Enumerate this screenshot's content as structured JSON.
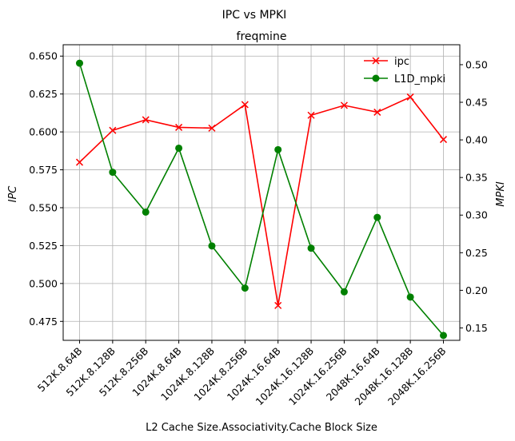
{
  "chart_data": {
    "type": "line",
    "suptitle": "IPC vs MPKI",
    "title": "freqmine",
    "xlabel": "L2 Cache Size.Associativity.Cache Block Size",
    "ylabel_left": "IPC",
    "ylabel_right": "MPKI",
    "categories": [
      "512K.8.64B",
      "512K.8.128B",
      "512K.8.256B",
      "1024K.8.64B",
      "1024K.8.128B",
      "1024K.8.256B",
      "1024K.16.64B",
      "1024K.16.128B",
      "1024K.16.256B",
      "2048K.16.64B",
      "2048K.16.128B",
      "2048K.16.256B"
    ],
    "series": [
      {
        "name": "ipc",
        "axis": "left",
        "color": "#ff0000",
        "marker": "x",
        "values": [
          0.58,
          0.601,
          0.608,
          0.603,
          0.6025,
          0.618,
          0.4855,
          0.611,
          0.6175,
          0.613,
          0.623,
          0.595
        ]
      },
      {
        "name": "L1D_mpki",
        "axis": "right",
        "color": "#008000",
        "marker": "o",
        "values": [
          0.502,
          0.357,
          0.304,
          0.389,
          0.259,
          0.203,
          0.387,
          0.256,
          0.198,
          0.297,
          0.191,
          0.14
        ]
      }
    ],
    "ylim_left": [
      0.4625,
      0.6575
    ],
    "ylim_right": [
      0.1335,
      0.5265
    ],
    "yticks_left": [
      "0.475",
      "0.500",
      "0.525",
      "0.550",
      "0.575",
      "0.600",
      "0.625",
      "0.650"
    ],
    "yticks_right": [
      "0.15",
      "0.20",
      "0.25",
      "0.30",
      "0.35",
      "0.40",
      "0.45",
      "0.50"
    ],
    "grid": true,
    "legend_position": "top-right"
  }
}
